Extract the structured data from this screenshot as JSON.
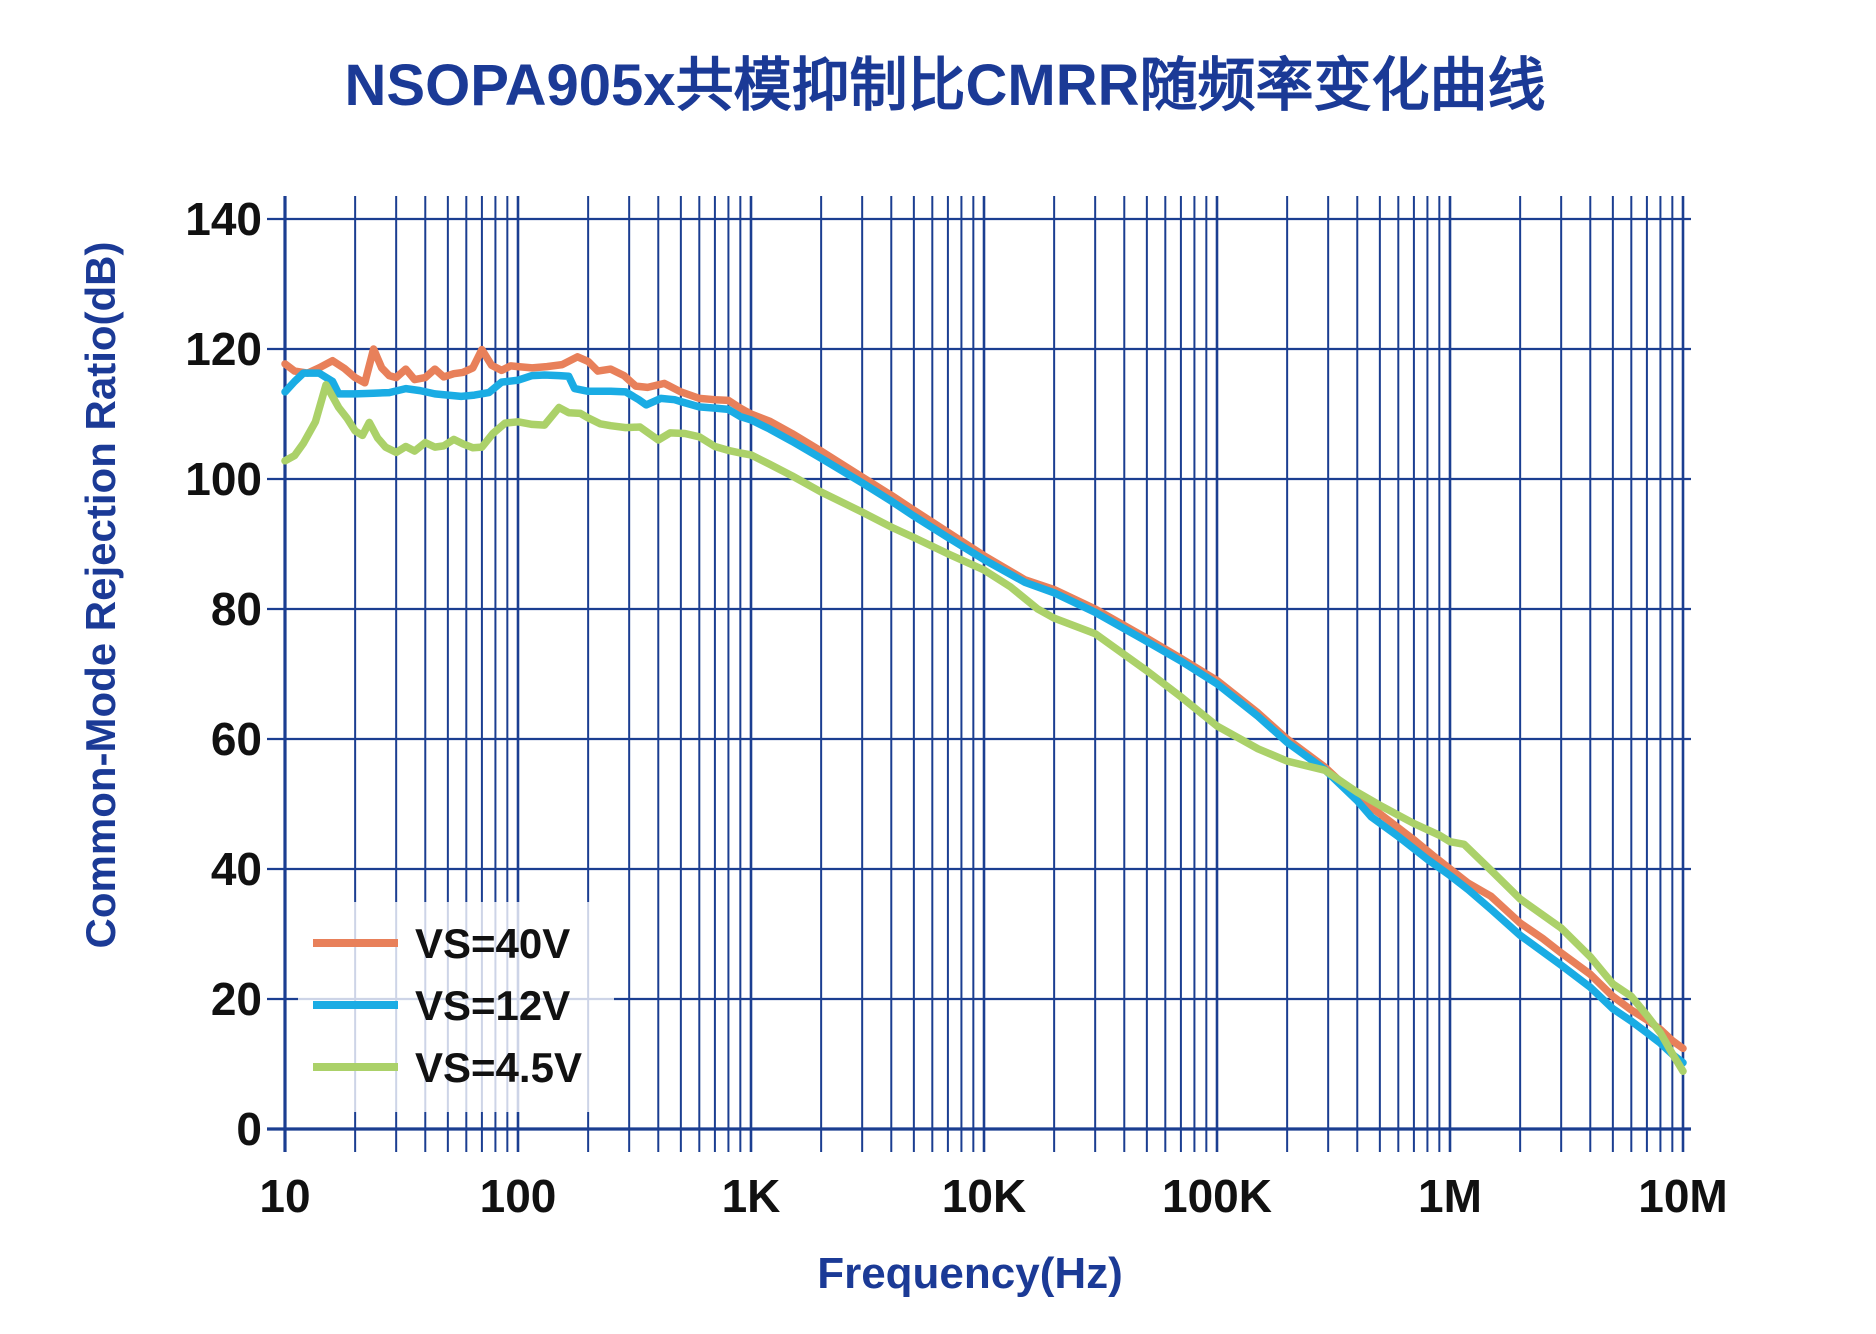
{
  "title": "NSOPA905x共模抑制比CMRR随频率变化曲线",
  "colors": {
    "title_text": "#1b3a96",
    "grid": "#1b3e91",
    "axis_tick_text": "#111111",
    "legend_text": "#111111",
    "legend_background": "rgba(255,255,255,0.78)",
    "series_vs40v": "#E8805A",
    "series_vs12v": "#1AACE4",
    "series_vs45v": "#ABD169"
  },
  "legend": {
    "items": [
      {
        "label": "VS=40V",
        "color": "#E8805A"
      },
      {
        "label": "VS=12V",
        "color": "#1AACE4"
      },
      {
        "label": "VS=4.5V",
        "color": "#ABD169"
      }
    ]
  },
  "chart_data": {
    "type": "line",
    "title": "NSOPA905x共模抑制比CMRR随频率变化曲线",
    "xlabel": "Frequency(Hz)",
    "ylabel": "Common-Mode Rejection Ratio(dB)",
    "x_scale": "log",
    "xlim": [
      10,
      10000000
    ],
    "ylim": [
      0,
      140
    ],
    "grid": "major and minor log vertical lines + 20dB horizontal lines, navy",
    "legend_position": "inside bottom-left",
    "y_ticks": [
      0,
      20,
      40,
      60,
      80,
      100,
      120,
      140
    ],
    "x_ticks": [
      {
        "f": 10,
        "label": "10"
      },
      {
        "f": 100,
        "label": "100"
      },
      {
        "f": 1000,
        "label": "1K"
      },
      {
        "f": 10000,
        "label": "10K"
      },
      {
        "f": 100000,
        "label": "100K"
      },
      {
        "f": 1000000,
        "label": "1M"
      },
      {
        "f": 10000000,
        "label": "10M"
      }
    ],
    "series": [
      {
        "name": "VS=40V",
        "color": "#E8805A",
        "points": [
          [
            10,
            117.7
          ],
          [
            11,
            116.6
          ],
          [
            12.5,
            116.3
          ],
          [
            14,
            117.1
          ],
          [
            16,
            118.2
          ],
          [
            18,
            117.0
          ],
          [
            20,
            115.6
          ],
          [
            22,
            114.8
          ],
          [
            24,
            120.0
          ],
          [
            26,
            117.1
          ],
          [
            28,
            115.9
          ],
          [
            30,
            115.6
          ],
          [
            33,
            116.9
          ],
          [
            36,
            115.3
          ],
          [
            40,
            115.6
          ],
          [
            44,
            116.9
          ],
          [
            48,
            115.7
          ],
          [
            53,
            116.2
          ],
          [
            58,
            116.4
          ],
          [
            64,
            117.1
          ],
          [
            70,
            119.9
          ],
          [
            77,
            117.5
          ],
          [
            85,
            116.7
          ],
          [
            93,
            117.4
          ],
          [
            100,
            117.3
          ],
          [
            115,
            117.1
          ],
          [
            133,
            117.3
          ],
          [
            155,
            117.6
          ],
          [
            180,
            118.8
          ],
          [
            200,
            118.1
          ],
          [
            220,
            116.6
          ],
          [
            250,
            116.9
          ],
          [
            285,
            115.9
          ],
          [
            320,
            114.3
          ],
          [
            360,
            114.1
          ],
          [
            425,
            114.7
          ],
          [
            500,
            113.4
          ],
          [
            600,
            112.4
          ],
          [
            700,
            112.2
          ],
          [
            800,
            112.1
          ],
          [
            900,
            110.9
          ],
          [
            1000,
            110.0
          ],
          [
            1200,
            108.9
          ],
          [
            1500,
            107.0
          ],
          [
            2000,
            104.3
          ],
          [
            3000,
            100.3
          ],
          [
            4000,
            97.5
          ],
          [
            5000,
            95.2
          ],
          [
            7000,
            91.8
          ],
          [
            10000,
            88.2
          ],
          [
            15000,
            84.5
          ],
          [
            20000,
            83.0
          ],
          [
            30000,
            80.0
          ],
          [
            50000,
            75.5
          ],
          [
            70000,
            72.4
          ],
          [
            100000,
            69.0
          ],
          [
            150000,
            64.0
          ],
          [
            200000,
            60.0
          ],
          [
            290000,
            55.7
          ],
          [
            400000,
            51.0
          ],
          [
            500000,
            48.5
          ],
          [
            700000,
            44.5
          ],
          [
            850000,
            42.0
          ],
          [
            1000000,
            40.0
          ],
          [
            1200000,
            37.8
          ],
          [
            1500000,
            35.8
          ],
          [
            2000000,
            31.7
          ],
          [
            2500000,
            29.3
          ],
          [
            3000000,
            27.1
          ],
          [
            4000000,
            23.8
          ],
          [
            5000000,
            20.4
          ],
          [
            6000000,
            18.3
          ],
          [
            7000000,
            16.8
          ],
          [
            8000000,
            15.3
          ],
          [
            9000000,
            13.6
          ],
          [
            10000000,
            12.4
          ]
        ]
      },
      {
        "name": "VS=12V",
        "color": "#1AACE4",
        "points": [
          [
            10,
            113.4
          ],
          [
            11,
            115.0
          ],
          [
            12,
            116.3
          ],
          [
            14,
            116.3
          ],
          [
            16,
            115.0
          ],
          [
            17,
            113.1
          ],
          [
            20,
            113.1
          ],
          [
            24,
            113.2
          ],
          [
            28,
            113.3
          ],
          [
            33,
            113.9
          ],
          [
            38,
            113.6
          ],
          [
            44,
            113.1
          ],
          [
            50,
            112.9
          ],
          [
            57,
            112.7
          ],
          [
            65,
            112.9
          ],
          [
            75,
            113.3
          ],
          [
            85,
            114.9
          ],
          [
            100,
            115.2
          ],
          [
            115,
            115.9
          ],
          [
            130,
            116.0
          ],
          [
            150,
            115.9
          ],
          [
            165,
            115.8
          ],
          [
            175,
            113.9
          ],
          [
            200,
            113.5
          ],
          [
            250,
            113.5
          ],
          [
            290,
            113.4
          ],
          [
            330,
            112.2
          ],
          [
            355,
            111.4
          ],
          [
            410,
            112.4
          ],
          [
            470,
            112.2
          ],
          [
            500,
            111.9
          ],
          [
            600,
            111.1
          ],
          [
            700,
            110.9
          ],
          [
            800,
            110.7
          ],
          [
            900,
            109.6
          ],
          [
            1000,
            109.1
          ],
          [
            1200,
            107.7
          ],
          [
            1500,
            105.8
          ],
          [
            2000,
            103.2
          ],
          [
            3000,
            99.4
          ],
          [
            4000,
            96.6
          ],
          [
            5000,
            94.3
          ],
          [
            7000,
            91.0
          ],
          [
            10000,
            87.6
          ],
          [
            15000,
            84.1
          ],
          [
            20000,
            82.5
          ],
          [
            30000,
            79.5
          ],
          [
            50000,
            75.0
          ],
          [
            70000,
            72.0
          ],
          [
            100000,
            68.5
          ],
          [
            150000,
            63.5
          ],
          [
            200000,
            59.5
          ],
          [
            290000,
            55.3
          ],
          [
            400000,
            50.5
          ],
          [
            460000,
            48.0
          ],
          [
            600000,
            45.0
          ],
          [
            800000,
            41.5
          ],
          [
            1000000,
            39.0
          ],
          [
            1200000,
            36.8
          ],
          [
            1500000,
            33.8
          ],
          [
            2000000,
            29.8
          ],
          [
            3000000,
            25.2
          ],
          [
            4000000,
            21.8
          ],
          [
            5000000,
            18.5
          ],
          [
            6000000,
            16.6
          ],
          [
            7000000,
            14.8
          ],
          [
            8000000,
            13.2
          ],
          [
            9000000,
            11.5
          ],
          [
            10000000,
            10.2
          ]
        ]
      },
      {
        "name": "VS=4.5V",
        "color": "#ABD169",
        "points": [
          [
            10,
            102.8
          ],
          [
            11,
            103.6
          ],
          [
            12,
            105.5
          ],
          [
            13.5,
            108.8
          ],
          [
            15,
            114.5
          ],
          [
            17,
            111.0
          ],
          [
            18.5,
            109.3
          ],
          [
            20,
            107.4
          ],
          [
            21.5,
            106.7
          ],
          [
            23,
            108.7
          ],
          [
            25,
            106.3
          ],
          [
            27,
            104.9
          ],
          [
            30,
            104.1
          ],
          [
            33,
            105.0
          ],
          [
            36,
            104.3
          ],
          [
            40,
            105.6
          ],
          [
            44,
            104.9
          ],
          [
            48,
            105.1
          ],
          [
            53,
            106.1
          ],
          [
            58,
            105.4
          ],
          [
            64,
            104.8
          ],
          [
            70,
            104.9
          ],
          [
            78,
            107.0
          ],
          [
            88,
            108.6
          ],
          [
            100,
            108.8
          ],
          [
            115,
            108.4
          ],
          [
            130,
            108.3
          ],
          [
            150,
            111.0
          ],
          [
            165,
            110.2
          ],
          [
            185,
            110.1
          ],
          [
            200,
            109.4
          ],
          [
            225,
            108.5
          ],
          [
            250,
            108.2
          ],
          [
            290,
            107.9
          ],
          [
            334,
            108.0
          ],
          [
            400,
            106.0
          ],
          [
            450,
            107.1
          ],
          [
            520,
            107.0
          ],
          [
            600,
            106.5
          ],
          [
            700,
            105.0
          ],
          [
            800,
            104.4
          ],
          [
            900,
            104.0
          ],
          [
            1000,
            103.7
          ],
          [
            1200,
            102.3
          ],
          [
            1500,
            100.5
          ],
          [
            2000,
            98.0
          ],
          [
            3000,
            94.9
          ],
          [
            4000,
            92.6
          ],
          [
            5000,
            91.0
          ],
          [
            7000,
            88.5
          ],
          [
            10000,
            86.0
          ],
          [
            13000,
            83.4
          ],
          [
            17000,
            80.0
          ],
          [
            20000,
            78.6
          ],
          [
            30000,
            76.2
          ],
          [
            50000,
            70.5
          ],
          [
            70000,
            66.5
          ],
          [
            100000,
            62.0
          ],
          [
            150000,
            58.5
          ],
          [
            200000,
            56.6
          ],
          [
            290000,
            55.2
          ],
          [
            400000,
            51.8
          ],
          [
            500000,
            49.8
          ],
          [
            700000,
            47.0
          ],
          [
            900000,
            45.2
          ],
          [
            1000000,
            44.2
          ],
          [
            1150000,
            43.8
          ],
          [
            1500000,
            39.8
          ],
          [
            2000000,
            35.4
          ],
          [
            3000000,
            30.9
          ],
          [
            4000000,
            26.5
          ],
          [
            5000000,
            22.3
          ],
          [
            6000000,
            20.4
          ],
          [
            7000000,
            17.5
          ],
          [
            8000000,
            14.8
          ],
          [
            9000000,
            11.6
          ],
          [
            10000000,
            8.9
          ]
        ]
      }
    ]
  }
}
